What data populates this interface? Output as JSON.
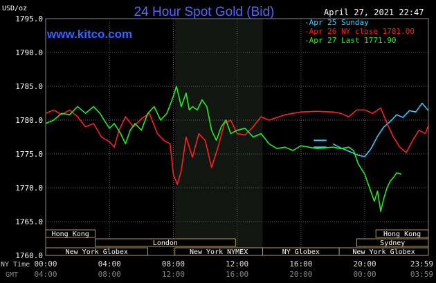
{
  "chart_data": {
    "type": "line",
    "title": "24 Hour Spot Gold (Bid)",
    "ylabel": "USD/oz",
    "website": "www.kitco.com",
    "datestamp": "April 27, 2021 22:47",
    "ylim": [
      1760,
      1795
    ],
    "yticks": [
      "1795.0",
      "1790.0",
      "1785.0",
      "1780.0",
      "1775.0",
      "1770.0",
      "1765.0",
      "1760.0"
    ],
    "x_ticks_ny": [
      "00:00",
      "04:00",
      "08:00",
      "12:00",
      "16:00",
      "20:00",
      "23:59"
    ],
    "x_ticks_gmt": [
      "04:00",
      "08:00",
      "12:00",
      "16:00",
      "20:00",
      "00:00",
      "03:59"
    ],
    "xlabel_ny": "NY Time",
    "xlabel_gmt": "GMT",
    "grid": true,
    "legend_position": "top-right",
    "series": [
      {
        "name": "Apr 25 Sunday",
        "color": "#33ccff",
        "x": [
          18.0,
          18.4,
          18.8,
          19.2,
          19.6,
          20.0,
          20.4,
          20.8,
          21.2,
          21.6,
          22.0,
          22.4,
          22.8,
          23.2,
          23.6,
          23.99
        ],
        "y": [
          1776.5,
          1776.0,
          1775.6,
          1775.2,
          1774.8,
          1774.6,
          1775.8,
          1777.6,
          1779.0,
          1779.8,
          1780.8,
          1780.4,
          1781.4,
          1781.2,
          1782.5,
          1781.4
        ],
        "flat": [
          [
            16.8,
            17.6,
            1777.0
          ],
          [
            16.8,
            17.6,
            1776.0
          ]
        ]
      },
      {
        "name": "Apr 26 NY close 1781.00",
        "color": "#ff2020",
        "x": [
          0.0,
          0.5,
          1.0,
          1.5,
          2.0,
          2.5,
          3.0,
          3.5,
          4.0,
          4.3,
          4.6,
          5.0,
          5.5,
          6.0,
          6.5,
          7.0,
          7.4,
          7.8,
          8.0,
          8.25,
          8.5,
          8.8,
          9.2,
          9.6,
          10.0,
          10.4,
          10.8,
          11.2,
          11.6,
          12.0,
          12.5,
          13.0,
          13.5,
          14.0,
          15.0,
          16.0,
          17.0,
          18.0,
          18.5,
          19.0,
          19.5,
          20.0,
          20.5,
          21.0,
          21.4,
          21.8,
          22.2,
          22.6,
          23.0,
          23.4,
          23.8,
          23.99
        ],
        "y": [
          1781.0,
          1781.5,
          1780.8,
          1781.5,
          1780.5,
          1779.0,
          1779.5,
          1777.5,
          1776.8,
          1776.0,
          1778.5,
          1780.5,
          1779.0,
          1780.2,
          1781.0,
          1778.0,
          1777.0,
          1776.5,
          1772.0,
          1770.5,
          1772.5,
          1777.5,
          1774.5,
          1778.0,
          1777.0,
          1773.0,
          1776.0,
          1779.5,
          1780.0,
          1778.0,
          1777.8,
          1779.0,
          1780.5,
          1780.0,
          1780.8,
          1781.2,
          1781.3,
          1781.2,
          1781.0,
          1780.5,
          1781.5,
          1781.5,
          1781.0,
          1781.8,
          1779.5,
          1777.5,
          1776.0,
          1775.2,
          1777.0,
          1778.5,
          1778.0,
          1779.2
        ]
      },
      {
        "name": "Apr 27 Last 1771.90",
        "color": "#22ee22",
        "x": [
          0.0,
          0.5,
          1.0,
          1.5,
          2.0,
          2.5,
          3.0,
          3.4,
          3.8,
          4.0,
          4.3,
          4.7,
          5.0,
          5.3,
          5.6,
          6.0,
          6.4,
          6.8,
          7.2,
          7.6,
          8.0,
          8.2,
          8.5,
          8.8,
          9.0,
          9.2,
          9.5,
          9.8,
          10.1,
          10.4,
          10.7,
          11.0,
          11.3,
          11.6,
          12.0,
          12.5,
          13.0,
          13.5,
          14.0,
          14.5,
          15.0,
          15.5,
          16.0,
          16.5,
          17.0,
          17.5,
          18.0,
          18.5,
          19.0,
          19.3,
          19.6,
          20.0,
          20.3,
          20.6,
          20.8,
          21.0,
          21.2,
          21.4,
          21.6,
          21.8,
          22.0,
          22.3
        ],
        "y": [
          1779.5,
          1780.0,
          1781.0,
          1780.8,
          1782.0,
          1781.0,
          1782.0,
          1781.0,
          1779.5,
          1778.8,
          1779.5,
          1778.0,
          1776.5,
          1778.5,
          1779.5,
          1778.5,
          1781.0,
          1782.0,
          1780.0,
          1781.0,
          1783.5,
          1785.0,
          1782.0,
          1784.0,
          1781.5,
          1782.0,
          1781.5,
          1783.0,
          1782.0,
          1778.5,
          1777.0,
          1779.0,
          1780.0,
          1778.0,
          1778.5,
          1778.8,
          1777.5,
          1778.0,
          1776.5,
          1775.8,
          1776.0,
          1775.5,
          1776.2,
          1776.0,
          1775.8,
          1775.9,
          1776.0,
          1775.8,
          1776.0,
          1775.5,
          1773.5,
          1772.0,
          1770.0,
          1768.0,
          1769.5,
          1766.5,
          1768.5,
          1770.0,
          1771.0,
          1771.5,
          1772.2,
          1772.0
        ]
      }
    ]
  },
  "sessions": [
    {
      "name": "Hong Kong",
      "start": 0.0,
      "end": 3.1,
      "row": 0
    },
    {
      "name": "London",
      "start": 3.1,
      "end": 11.9,
      "row": 1
    },
    {
      "name": "New York Globex",
      "start": 0.0,
      "end": 6.4,
      "row": 2
    },
    {
      "name": "New York NYMEX",
      "start": 8.1,
      "end": 13.6,
      "row": 2
    },
    {
      "name": "NY Globex",
      "start": 13.6,
      "end": 18.4,
      "row": 2
    },
    {
      "name": "Hong Kong",
      "start": 20.7,
      "end": 23.99,
      "row": 0
    },
    {
      "name": "Sydney",
      "start": 19.5,
      "end": 23.99,
      "row": 1
    },
    {
      "name": "New York Globex",
      "start": 18.4,
      "end": 23.99,
      "row": 2
    }
  ],
  "nymex_highlight": {
    "start": 8.1,
    "end": 13.6
  }
}
